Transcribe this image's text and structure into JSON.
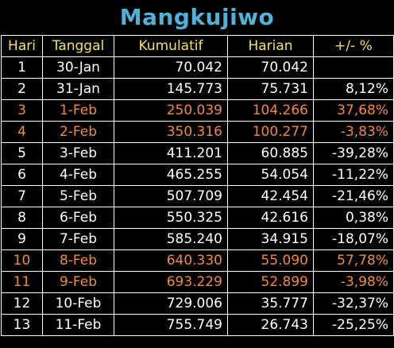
{
  "title": "Mangkujiwo",
  "headers": [
    "Hari",
    "Tanggal",
    "Kumulatif",
    "Harian",
    "+/- %"
  ],
  "accent_colors": {
    "title": "#4fb3d9",
    "header": "#f2e35a",
    "highlight": "#f28a3c"
  },
  "rows": [
    {
      "hari": "1",
      "tanggal": "30-Jan",
      "kumulatif": "70.042",
      "harian": "70.042",
      "pct": "",
      "highlight": false
    },
    {
      "hari": "2",
      "tanggal": "31-Jan",
      "kumulatif": "145.773",
      "harian": "75.731",
      "pct": "8,12%",
      "highlight": false
    },
    {
      "hari": "3",
      "tanggal": "1-Feb",
      "kumulatif": "250.039",
      "harian": "104.266",
      "pct": "37,68%",
      "highlight": true
    },
    {
      "hari": "4",
      "tanggal": "2-Feb",
      "kumulatif": "350.316",
      "harian": "100.277",
      "pct": "-3,83%",
      "highlight": true
    },
    {
      "hari": "5",
      "tanggal": "3-Feb",
      "kumulatif": "411.201",
      "harian": "60.885",
      "pct": "-39,28%",
      "highlight": false
    },
    {
      "hari": "6",
      "tanggal": "4-Feb",
      "kumulatif": "465.255",
      "harian": "54.054",
      "pct": "-11,22%",
      "highlight": false
    },
    {
      "hari": "7",
      "tanggal": "5-Feb",
      "kumulatif": "507.709",
      "harian": "42.454",
      "pct": "-21,46%",
      "highlight": false
    },
    {
      "hari": "8",
      "tanggal": "6-Feb",
      "kumulatif": "550.325",
      "harian": "42.616",
      "pct": "0,38%",
      "highlight": false
    },
    {
      "hari": "9",
      "tanggal": "7-Feb",
      "kumulatif": "585.240",
      "harian": "34.915",
      "pct": "-18,07%",
      "highlight": false
    },
    {
      "hari": "10",
      "tanggal": "8-Feb",
      "kumulatif": "640.330",
      "harian": "55.090",
      "pct": "57,78%",
      "highlight": true
    },
    {
      "hari": "11",
      "tanggal": "9-Feb",
      "kumulatif": "693.229",
      "harian": "52.899",
      "pct": "-3,98%",
      "highlight": true
    },
    {
      "hari": "12",
      "tanggal": "10-Feb",
      "kumulatif": "729.006",
      "harian": "35.777",
      "pct": "-32,37%",
      "highlight": false
    },
    {
      "hari": "13",
      "tanggal": "11-Feb",
      "kumulatif": "755.749",
      "harian": "26.743",
      "pct": "-25,25%",
      "highlight": false
    }
  ]
}
